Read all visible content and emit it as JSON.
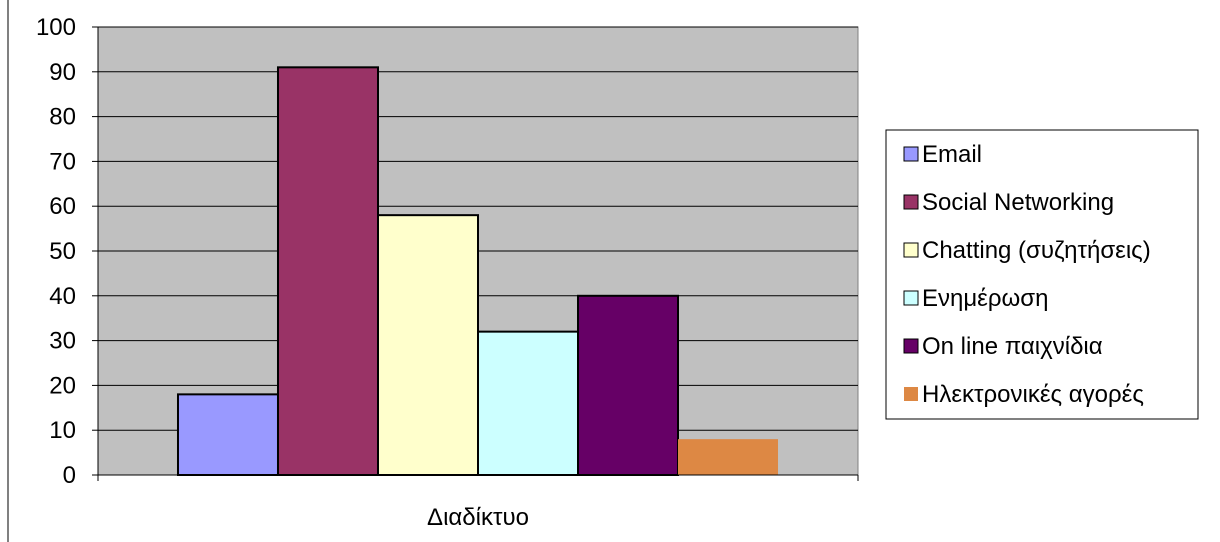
{
  "chart_data": {
    "type": "bar",
    "categories": [
      "Διαδίκτυο"
    ],
    "ylim": [
      0,
      100
    ],
    "yticks": [
      0,
      10,
      20,
      30,
      40,
      50,
      60,
      70,
      80,
      90,
      100
    ],
    "grid": true,
    "legend_position": "right",
    "plot_background": "#c0c0c0",
    "series": [
      {
        "name": "Email",
        "values": [
          18
        ],
        "color": "#9999ff"
      },
      {
        "name": "Social Networking",
        "values": [
          91
        ],
        "color": "#993366"
      },
      {
        "name": "Chatting (συζητήσεις)",
        "values": [
          58
        ],
        "color": "#ffffcc"
      },
      {
        "name": "Ενημέρωση",
        "values": [
          32
        ],
        "color": "#ccffff"
      },
      {
        "name": "On line παιχνίδια",
        "values": [
          40
        ],
        "color": "#660066"
      },
      {
        "name": "Ηλεκτρονικές αγορές",
        "values": [
          8
        ],
        "color": "#dd8844"
      }
    ]
  }
}
